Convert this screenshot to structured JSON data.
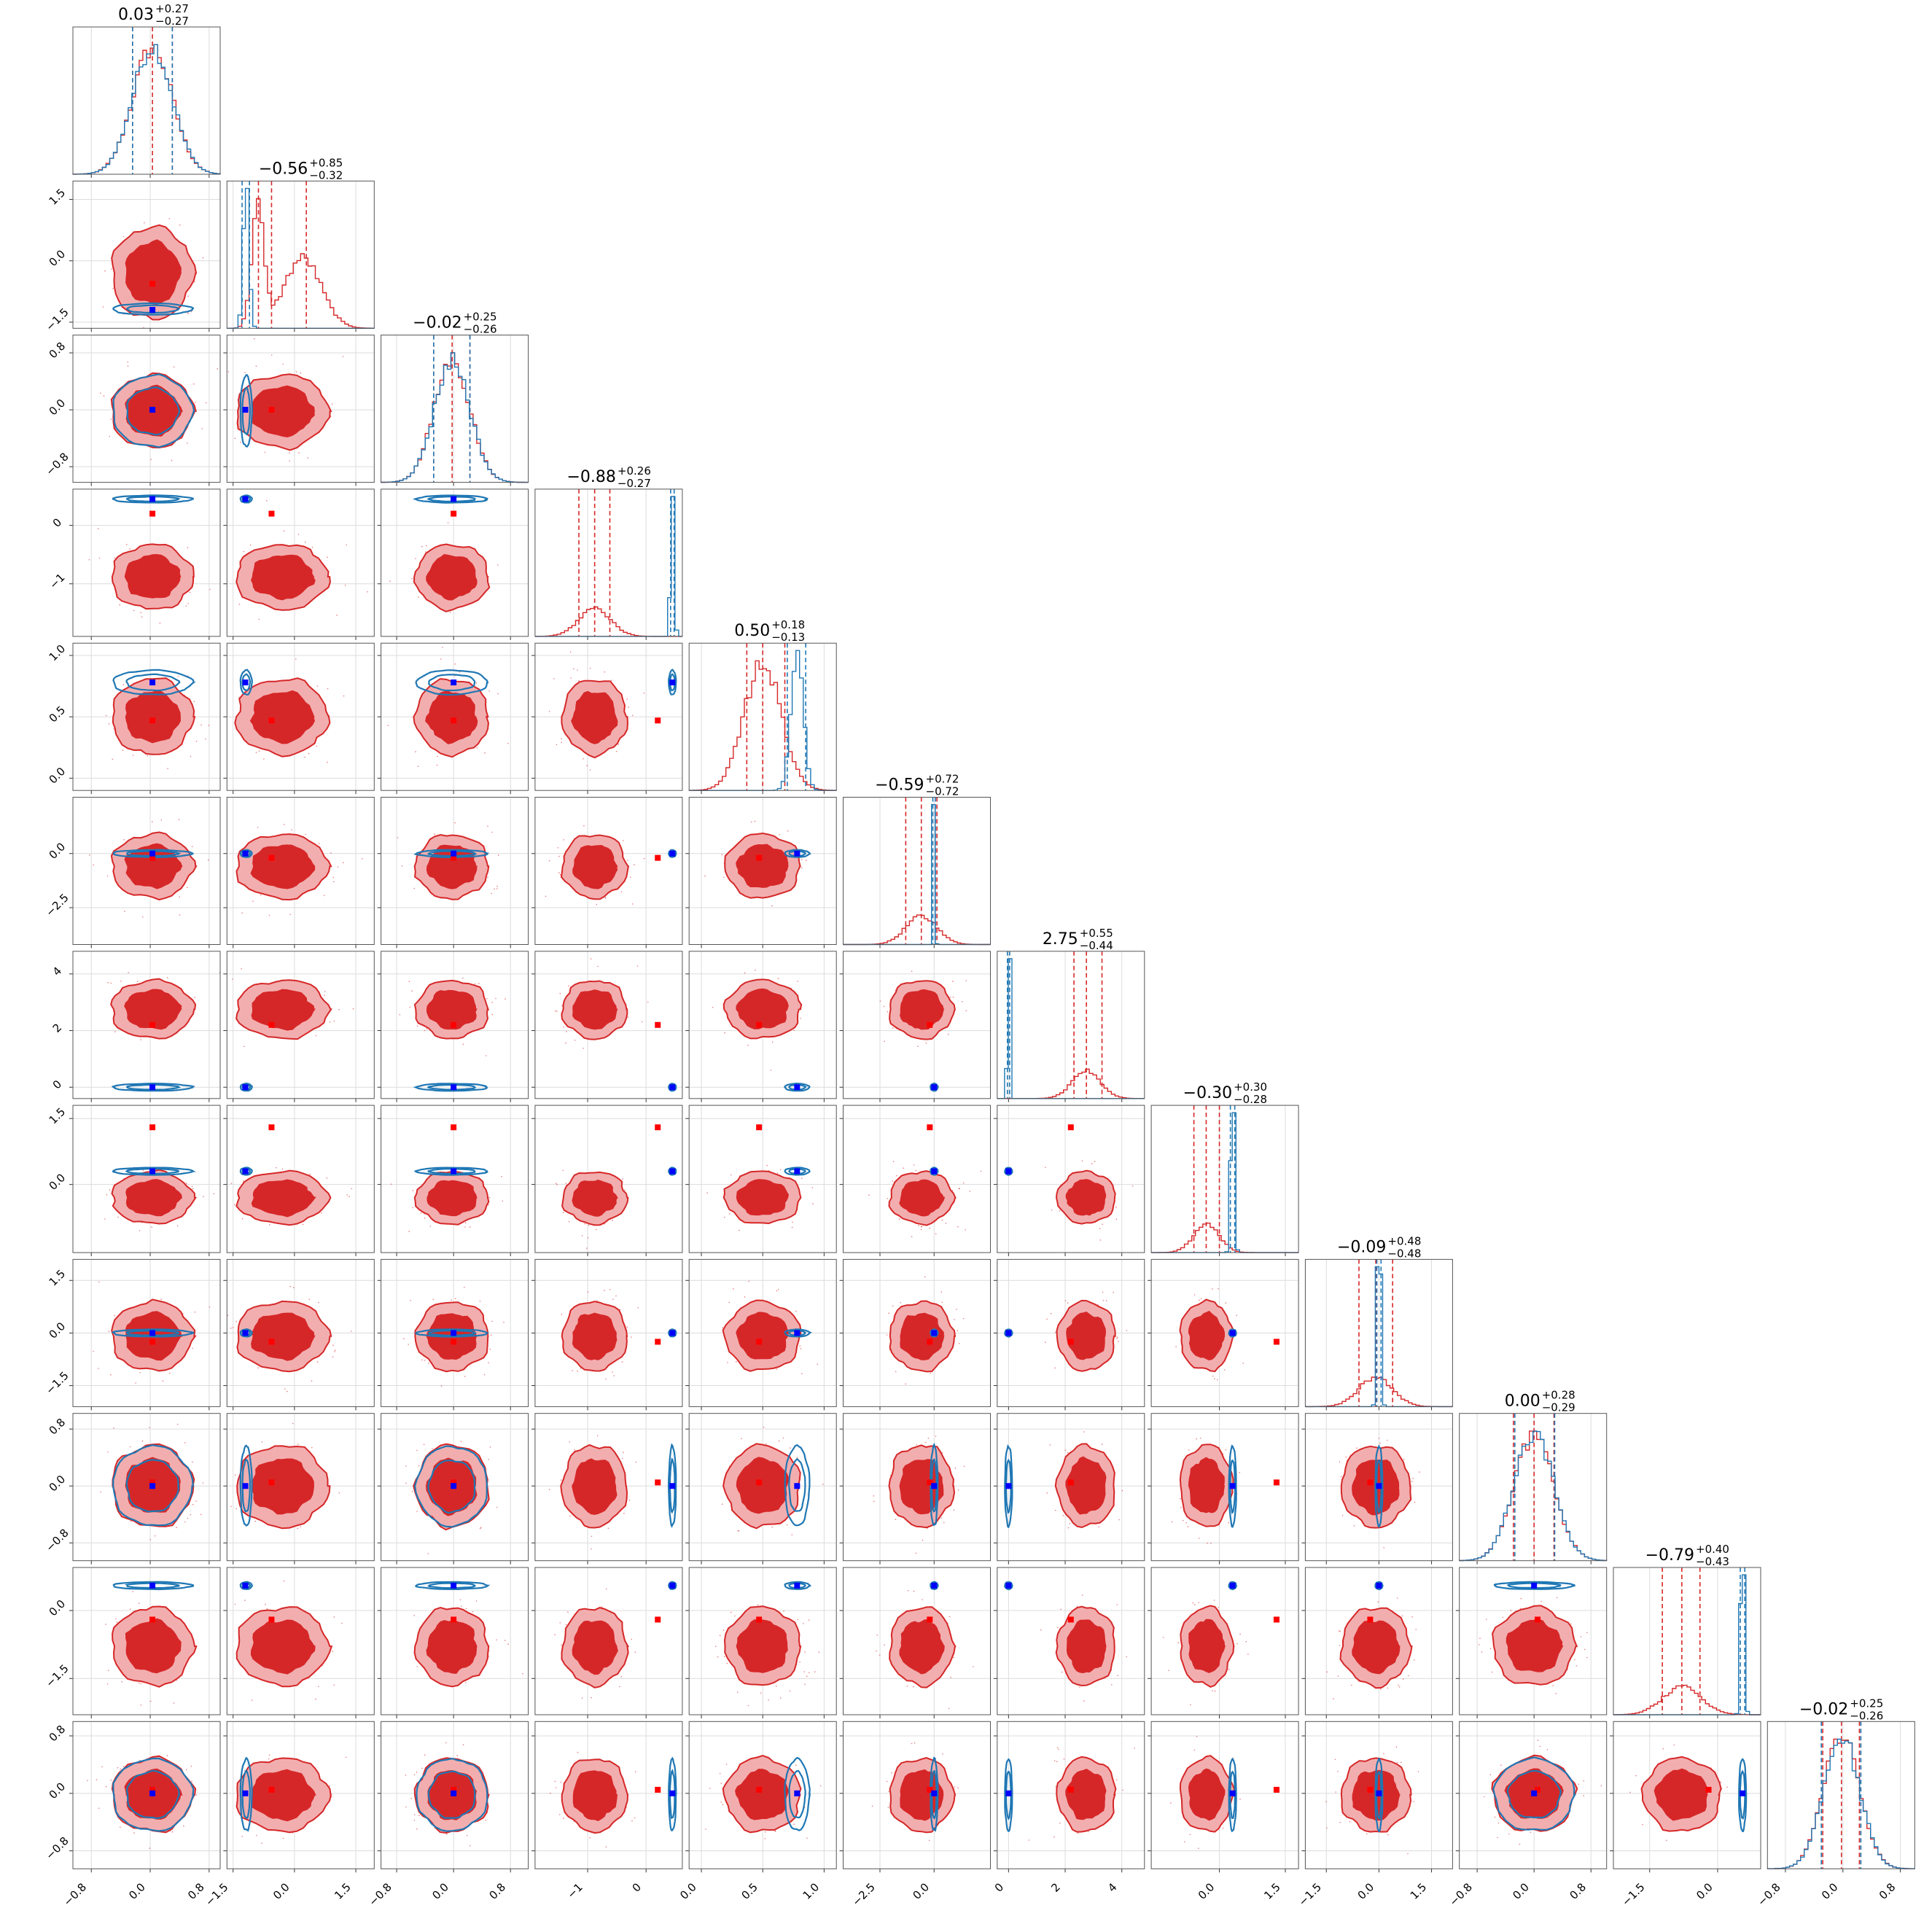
{
  "chart_data": {
    "type": "scatter",
    "layout": "corner",
    "n_params": 12,
    "colors": {
      "series_a": "#d62728",
      "series_a_fill_inner": "#d62728",
      "series_a_fill_outer": "#f2aeaf",
      "series_b": "#1f77b4",
      "truth_marker_a": "#ff0000",
      "truth_marker_b": "#0000ff",
      "grid": "#dcdcdc"
    },
    "titles": [
      {
        "median": "0.03",
        "plus": "+0.27",
        "minus": "−0.27"
      },
      {
        "median": "−0.56",
        "plus": "+0.85",
        "minus": "−0.32"
      },
      {
        "median": "−0.02",
        "plus": "+0.25",
        "minus": "−0.26"
      },
      {
        "median": "−0.88",
        "plus": "+0.26",
        "minus": "−0.27"
      },
      {
        "median": "0.50",
        "plus": "+0.18",
        "minus": "−0.13"
      },
      {
        "median": "−0.59",
        "plus": "+0.72",
        "minus": "−0.72"
      },
      {
        "median": "2.75",
        "plus": "+0.55",
        "minus": "−0.44"
      },
      {
        "median": "−0.30",
        "plus": "+0.30",
        "minus": "−0.28"
      },
      {
        "median": "−0.09",
        "plus": "+0.48",
        "minus": "−0.48"
      },
      {
        "median": "0.00",
        "plus": "+0.28",
        "minus": "−0.29"
      },
      {
        "median": "−0.79",
        "plus": "+0.40",
        "minus": "−0.43"
      },
      {
        "median": "−0.02",
        "plus": "+0.25",
        "minus": "−0.26"
      }
    ],
    "params": [
      {
        "range": [
          -1.05,
          0.95
        ],
        "ticks": [
          -0.8,
          0.0,
          0.8
        ],
        "labels": [
          "−0.8",
          "0.0",
          "0.8"
        ],
        "a": {
          "mean": 0.03,
          "sd": 0.27
        },
        "b": {
          "mean": 0.03,
          "sd": 0.27
        },
        "truth_a": 0.03,
        "truth_b": 0.03,
        "q_a": [
          -0.24,
          0.03,
          0.3
        ],
        "q_b": [
          -0.24,
          0.03,
          0.3
        ]
      },
      {
        "range": [
          -1.65,
          1.95
        ],
        "ticks": [
          -1.5,
          0.0,
          1.5
        ],
        "labels": [
          "−1.5",
          "0.0",
          "1.5"
        ],
        "a": {
          "mean": -0.3,
          "sd": 0.55
        },
        "b": {
          "mean": -1.18,
          "sd": 0.07
        },
        "truth_a": -0.56,
        "truth_b": -1.2,
        "q_a": [
          -0.88,
          -0.56,
          0.29
        ],
        "q_b": [
          -1.28,
          -1.2,
          -1.1
        ]
      },
      {
        "range": [
          -1.02,
          1.05
        ],
        "ticks": [
          -0.8,
          0.0,
          0.8
        ],
        "labels": [
          "−0.8",
          "0.0",
          "0.8"
        ],
        "a": {
          "mean": -0.02,
          "sd": 0.25
        },
        "b": {
          "mean": -0.02,
          "sd": 0.25
        },
        "truth_a": 0.0,
        "truth_b": 0.0,
        "q_a": [
          -0.28,
          -0.02,
          0.23
        ],
        "q_b": [
          -0.28,
          -0.02,
          0.23
        ]
      },
      {
        "range": [
          -1.9,
          0.62
        ],
        "ticks": [
          -1.0,
          0.0
        ],
        "labels": [
          "−1",
          "0"
        ],
        "a": {
          "mean": -0.88,
          "sd": 0.27
        },
        "b": {
          "mean": 0.45,
          "sd": 0.03
        },
        "truth_a": 0.2,
        "truth_b": 0.45,
        "q_a": [
          -1.15,
          -0.88,
          -0.62
        ],
        "q_b": [
          0.42,
          0.45,
          0.48
        ]
      },
      {
        "range": [
          -0.1,
          1.1
        ],
        "ticks": [
          0.0,
          0.5,
          1.0
        ],
        "labels": [
          "0.0",
          "0.5",
          "1.0"
        ],
        "a": {
          "mean": 0.5,
          "sd": 0.15
        },
        "b": {
          "mean": 0.78,
          "sd": 0.05
        },
        "truth_a": 0.47,
        "truth_b": 0.78,
        "q_a": [
          0.37,
          0.5,
          0.68
        ],
        "q_b": [
          0.7,
          0.78,
          0.85
        ]
      },
      {
        "range": [
          -4.2,
          2.6
        ],
        "ticks": [
          -2.5,
          0.0
        ],
        "labels": [
          "−2.5",
          "0.0"
        ],
        "a": {
          "mean": -0.59,
          "sd": 0.72
        },
        "b": {
          "mean": 0.0,
          "sd": 0.04
        },
        "truth_a": -0.2,
        "truth_b": 0.0,
        "q_a": [
          -1.31,
          -0.59,
          0.13
        ],
        "q_b": [
          -0.06,
          0.0,
          0.06
        ]
      },
      {
        "range": [
          -0.4,
          4.8
        ],
        "ticks": [
          0,
          2,
          4
        ],
        "labels": [
          "0",
          "2",
          "4"
        ],
        "a": {
          "mean": 2.75,
          "sd": 0.5
        },
        "b": {
          "mean": 0.0,
          "sd": 0.03
        },
        "truth_a": 2.2,
        "truth_b": 0.0,
        "q_a": [
          2.31,
          2.75,
          3.3
        ],
        "q_b": [
          -0.04,
          0.0,
          0.04
        ]
      },
      {
        "range": [
          -1.55,
          1.8
        ],
        "ticks": [
          0.0,
          1.5
        ],
        "labels": [
          "0.0",
          "1.5"
        ],
        "a": {
          "mean": -0.3,
          "sd": 0.29
        },
        "b": {
          "mean": 0.3,
          "sd": 0.04
        },
        "truth_a": 1.3,
        "truth_b": 0.3,
        "q_a": [
          -0.58,
          -0.3,
          0.0
        ],
        "q_b": [
          0.25,
          0.3,
          0.35
        ]
      },
      {
        "range": [
          -2.1,
          2.1
        ],
        "ticks": [
          -1.5,
          0.0,
          1.5
        ],
        "labels": [
          "−1.5",
          "0.0",
          "1.5"
        ],
        "a": {
          "mean": -0.09,
          "sd": 0.48
        },
        "b": {
          "mean": 0.0,
          "sd": 0.05
        },
        "truth_a": -0.25,
        "truth_b": 0.0,
        "q_a": [
          -0.57,
          -0.09,
          0.39
        ],
        "q_b": [
          -0.06,
          0.0,
          0.06
        ]
      },
      {
        "range": [
          -1.05,
          1.02
        ],
        "ticks": [
          -0.8,
          0.0,
          0.8
        ],
        "labels": [
          "−0.8",
          "0.0",
          "0.8"
        ],
        "a": {
          "mean": 0.0,
          "sd": 0.28
        },
        "b": {
          "mean": 0.0,
          "sd": 0.28
        },
        "truth_a": 0.05,
        "truth_b": 0.0,
        "q_a": [
          -0.29,
          0.0,
          0.28
        ],
        "q_b": [
          -0.27,
          0.0,
          0.29
        ]
      },
      {
        "range": [
          -2.3,
          0.95
        ],
        "ticks": [
          -1.5,
          0.0
        ],
        "labels": [
          "−1.5",
          "0.0"
        ],
        "a": {
          "mean": -0.79,
          "sd": 0.42
        },
        "b": {
          "mean": 0.55,
          "sd": 0.04
        },
        "truth_a": -0.2,
        "truth_b": 0.55,
        "q_a": [
          -1.22,
          -0.79,
          -0.39
        ],
        "q_b": [
          0.5,
          0.55,
          0.6
        ]
      },
      {
        "range": [
          -1.05,
          1.0
        ],
        "ticks": [
          -0.8,
          0.0,
          0.8
        ],
        "labels": [
          "−0.8",
          "0.0",
          "0.8"
        ],
        "a": {
          "mean": -0.02,
          "sd": 0.25
        },
        "b": {
          "mean": -0.02,
          "sd": 0.25
        },
        "truth_a": 0.05,
        "truth_b": 0.0,
        "q_a": [
          -0.28,
          -0.02,
          0.23
        ],
        "q_b": [
          -0.3,
          -0.02,
          0.25
        ]
      }
    ],
    "grid": true,
    "legend": "none"
  }
}
